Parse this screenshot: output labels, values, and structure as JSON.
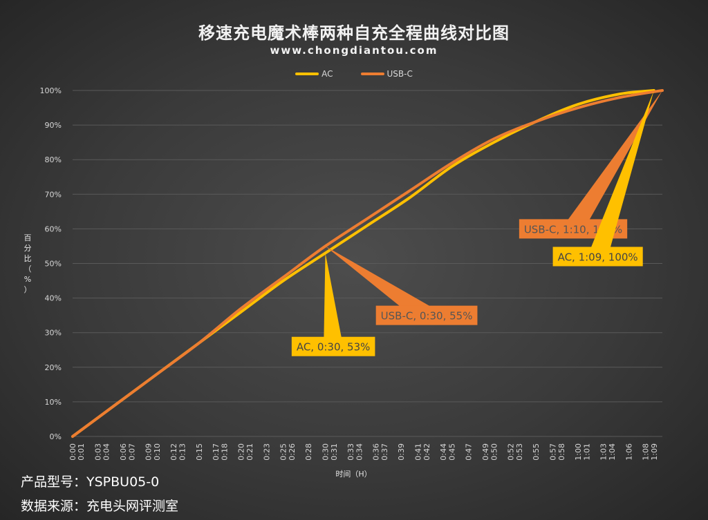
{
  "title": "移速充电魔术棒两种自充全程曲线对比图",
  "subtitle": "www.chongdiantou.com",
  "footer": {
    "model": "产品型号：YSPBU05-0",
    "source": "数据来源：充电头网评测室"
  },
  "colors": {
    "background": "#3a3a3a",
    "grid": "#5a5a5a",
    "ac": "#FFC000",
    "usbc": "#ED7D31",
    "usbc_label_text": "#555555",
    "ac_label_text": "#444444"
  },
  "chart_data": {
    "type": "line",
    "ylabel": "百分比（%）",
    "xlabel": "时间（H）",
    "ylim": [
      0,
      100
    ],
    "yticks": [
      "0%",
      "10%",
      "20%",
      "30%",
      "40%",
      "50%",
      "60%",
      "70%",
      "80%",
      "90%",
      "100%"
    ],
    "xlim_minutes": [
      0,
      70
    ],
    "xticks": [
      "0:00",
      "0:01",
      "0:03",
      "0:04",
      "0:06",
      "0:07",
      "0:09",
      "0:10",
      "0:12",
      "0:13",
      "0:15",
      "0:17",
      "0:18",
      "0:20",
      "0:21",
      "0:23",
      "0:25",
      "0:26",
      "0:28",
      "0:30",
      "0:31",
      "0:33",
      "0:34",
      "0:36",
      "0:37",
      "0:39",
      "0:41",
      "0:42",
      "0:44",
      "0:45",
      "0:47",
      "0:49",
      "0:50",
      "0:52",
      "0:53",
      "0:55",
      "0:57",
      "0:58",
      "1:00",
      "1:01",
      "1:03",
      "1:04",
      "1:06",
      "1:08",
      "1:09"
    ],
    "xtick_minutes": [
      0,
      1,
      3,
      4,
      6,
      7,
      9,
      10,
      12,
      13,
      15,
      17,
      18,
      20,
      21,
      23,
      25,
      26,
      28,
      30,
      31,
      33,
      34,
      36,
      37,
      39,
      41,
      42,
      44,
      45,
      47,
      49,
      50,
      52,
      53,
      55,
      57,
      58,
      60,
      61,
      63,
      64,
      66,
      68,
      69
    ],
    "legend": [
      "AC",
      "USB-C"
    ],
    "series": [
      {
        "name": "AC",
        "color": "#FFC000",
        "x_minutes": [
          0,
          5,
          10,
          15,
          20,
          25,
          30,
          35,
          40,
          45,
          50,
          55,
          60,
          65,
          69
        ],
        "values": [
          0,
          9,
          18,
          27,
          36,
          45,
          53,
          61,
          69,
          78,
          85,
          91,
          96,
          99,
          100
        ]
      },
      {
        "name": "USB-C",
        "color": "#ED7D31",
        "x_minutes": [
          0,
          5,
          10,
          15,
          20,
          25,
          30,
          35,
          40,
          45,
          50,
          55,
          60,
          65,
          70
        ],
        "values": [
          0,
          9,
          18,
          27,
          37,
          46,
          55,
          63,
          71,
          79,
          86,
          91,
          95,
          98,
          100
        ]
      }
    ],
    "annotations": [
      {
        "series": "AC",
        "text": "AC, 0:30, 53%",
        "x_minutes": 30,
        "y": 53,
        "label_x_minutes": 26,
        "label_y": 26,
        "bg": "#FFC000"
      },
      {
        "series": "USB-C",
        "text": "USB-C, 0:30, 55%",
        "x_minutes": 30,
        "y": 55,
        "label_x_minutes": 36,
        "label_y": 35,
        "bg": "#ED7D31"
      },
      {
        "series": "USB-C",
        "text": "USB-C, 1:10, 100%",
        "x_minutes": 70,
        "y": 100,
        "label_x_minutes": 53,
        "label_y": 60,
        "bg": "#ED7D31"
      },
      {
        "series": "AC",
        "text": "AC, 1:09, 100%",
        "x_minutes": 69,
        "y": 100,
        "label_x_minutes": 57,
        "label_y": 52,
        "bg": "#FFC000"
      }
    ]
  }
}
